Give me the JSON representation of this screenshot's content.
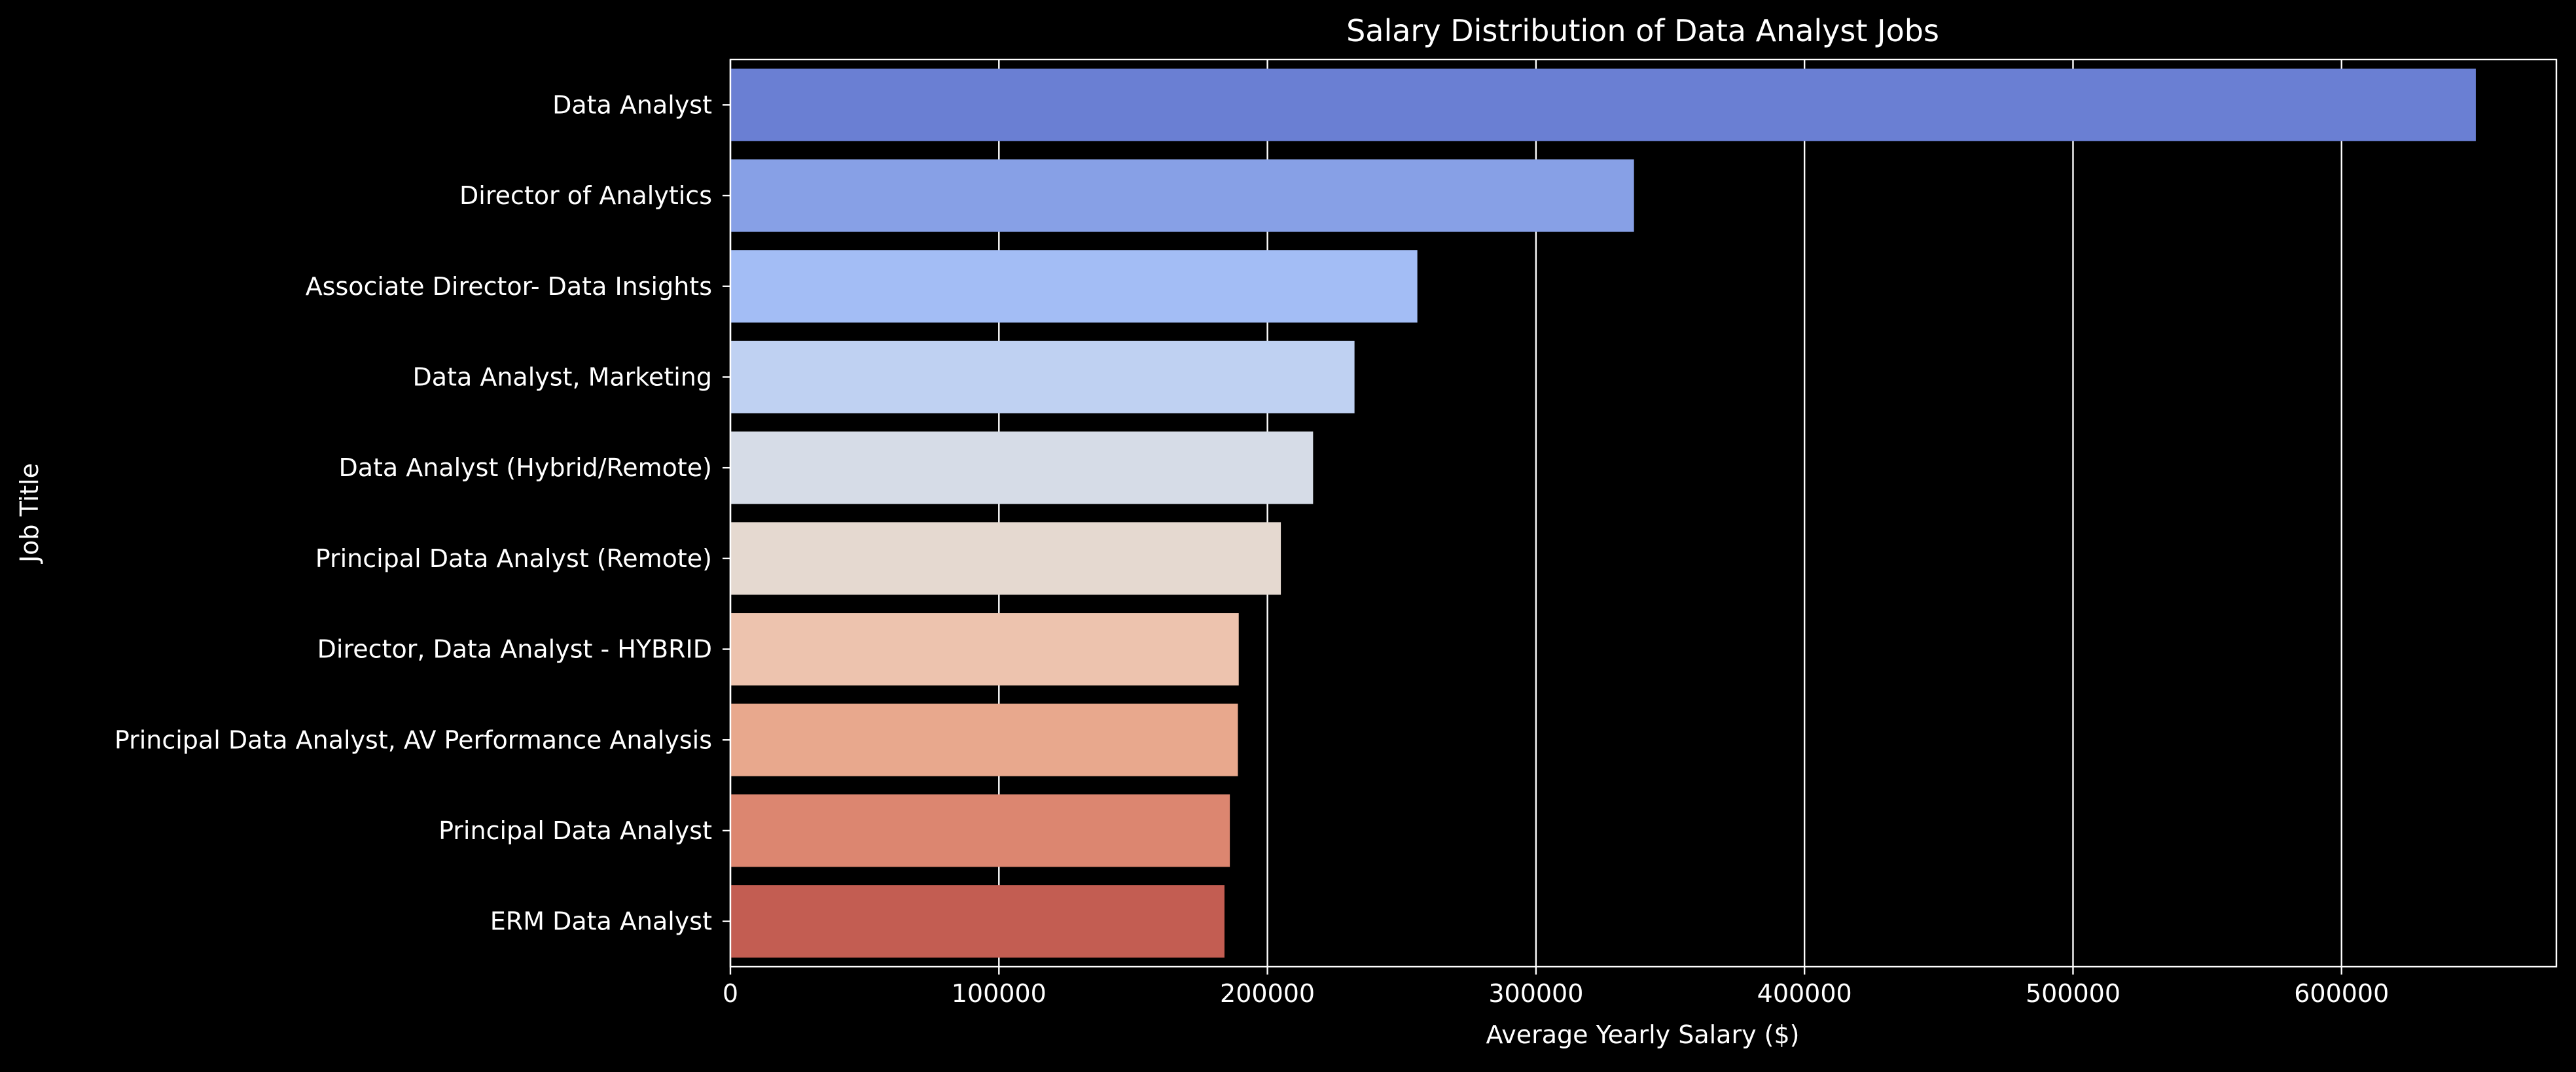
{
  "chart_data": {
    "type": "bar",
    "orientation": "horizontal",
    "title": "Salary Distribution of Data Analyst Jobs",
    "xlabel": "Average Yearly Salary ($)",
    "ylabel": "Job Title",
    "xlim": [
      0,
      680000
    ],
    "xticks": [
      0,
      100000,
      200000,
      300000,
      400000,
      500000,
      600000
    ],
    "xtick_labels": [
      "0",
      "100000",
      "200000",
      "300000",
      "400000",
      "500000",
      "600000"
    ],
    "grid": "vertical",
    "categories": [
      "Data Analyst",
      "Director of Analytics",
      "Associate Director- Data Insights",
      "Data Analyst, Marketing",
      "Data Analyst (Hybrid/Remote)",
      "Principal Data Analyst (Remote)",
      "Director, Data Analyst - HYBRID",
      "Principal Data Analyst, AV Performance Analysis",
      "Principal Data Analyst",
      "ERM Data Analyst"
    ],
    "values": [
      650000,
      336500,
      255830,
      232423,
      217000,
      205000,
      189309,
      189000,
      186000,
      184000
    ],
    "colors": [
      "#6a7fd3",
      "#87a0e6",
      "#a3bdf5",
      "#bfd1f2",
      "#d6dce7",
      "#e5d9d0",
      "#edc3ae",
      "#e8a88d",
      "#dc8670",
      "#c35d52"
    ],
    "background": "#000000",
    "text_color": "#ffffff"
  }
}
